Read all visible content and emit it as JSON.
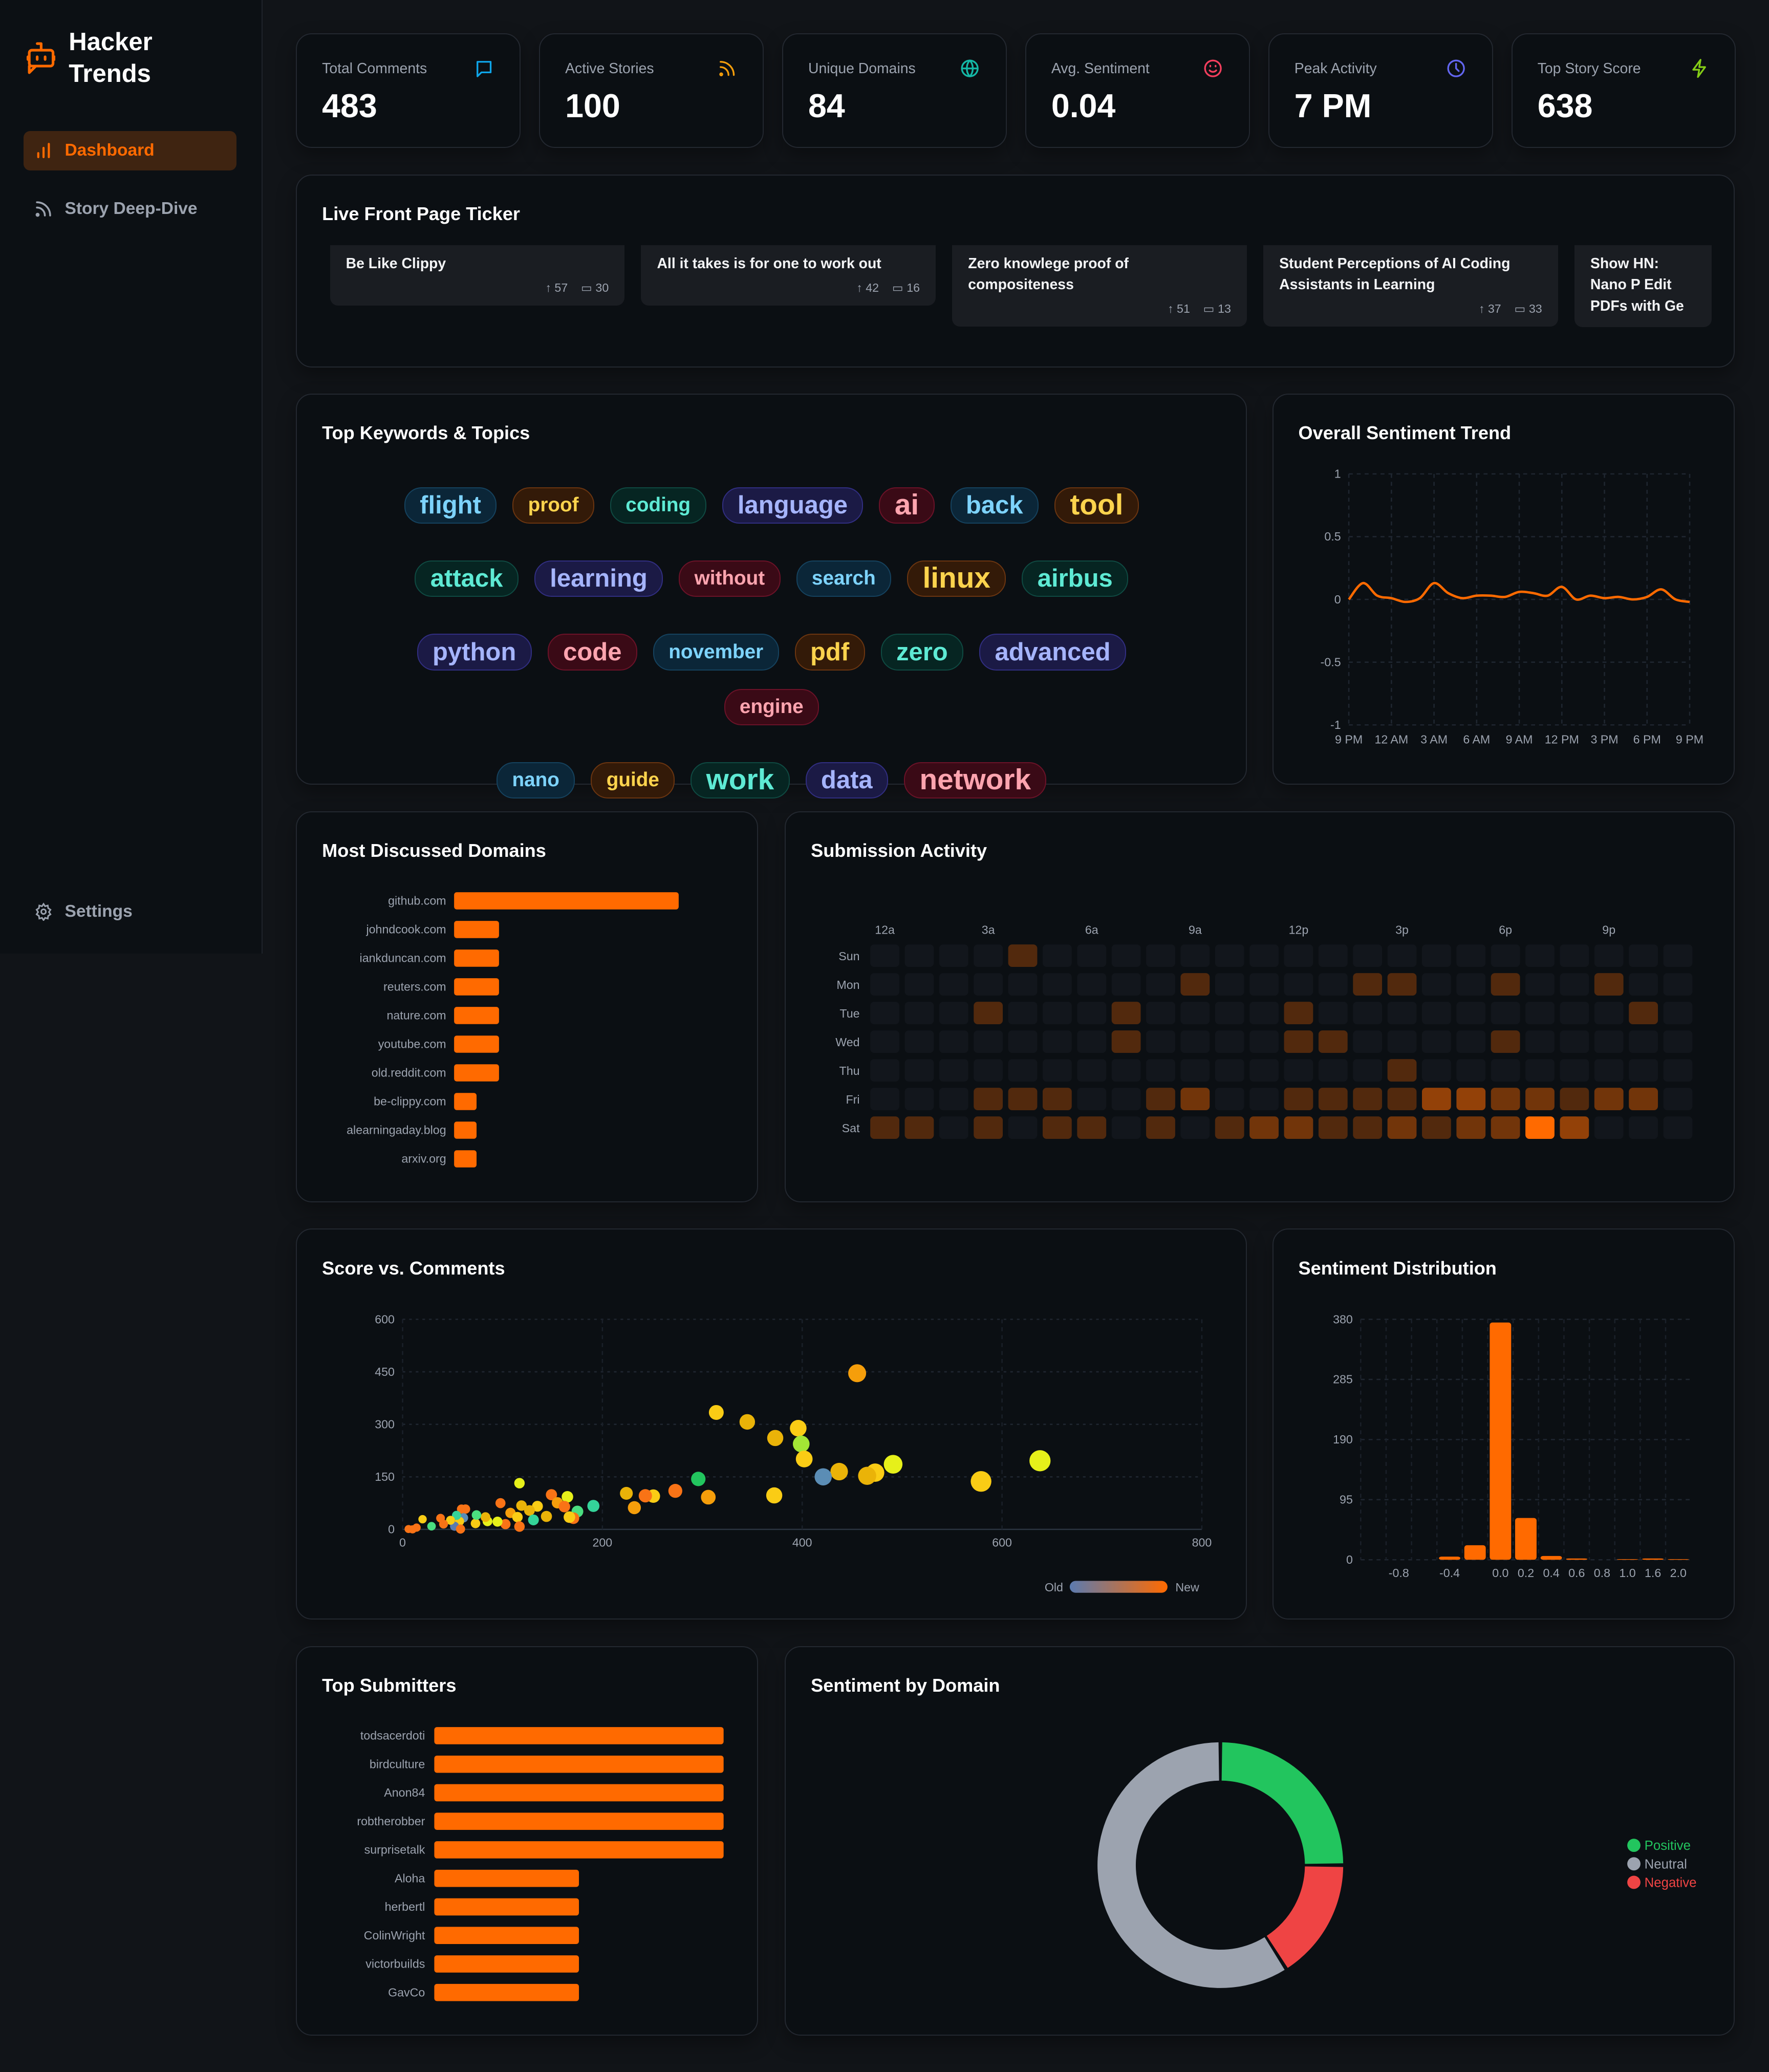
{
  "app": {
    "title": "Hacker Trends",
    "logo_icon": "robot-chat-icon"
  },
  "sidebar": {
    "items": [
      {
        "label": "Dashboard",
        "icon": "bar-chart-icon",
        "active": true
      },
      {
        "label": "Story Deep-Dive",
        "icon": "rss-icon",
        "active": false
      }
    ],
    "settings": {
      "label": "Settings",
      "icon": "gear-icon"
    }
  },
  "stats": [
    {
      "label": "Total Comments",
      "value": "483",
      "icon": "comment-icon",
      "color": "#0ea5e9"
    },
    {
      "label": "Active Stories",
      "value": "100",
      "icon": "rss-icon",
      "color": "#f59e0b"
    },
    {
      "label": "Unique Domains",
      "value": "84",
      "icon": "globe-icon",
      "color": "#14b8a6"
    },
    {
      "label": "Avg. Sentiment",
      "value": "0.04",
      "icon": "smile-icon",
      "color": "#f43f5e"
    },
    {
      "label": "Peak Activity",
      "value": "7 PM",
      "icon": "clock-icon",
      "color": "#6366f1"
    },
    {
      "label": "Top Story Score",
      "value": "638",
      "icon": "zap-icon",
      "color": "#84cc16"
    }
  ],
  "ticker": {
    "title": "Live Front Page Ticker",
    "items": [
      {
        "title": "Be Like Clippy",
        "score": "57",
        "comments": "30"
      },
      {
        "title": "All it takes is for one to work out",
        "score": "42",
        "comments": "16"
      },
      {
        "title": "Zero knowlege proof of compositeness",
        "score": "51",
        "comments": "13"
      },
      {
        "title": "Student Perceptions of AI Coding Assistants in Learning",
        "score": "37",
        "comments": "33"
      },
      {
        "title": "Show HN: Nano P Edit PDFs with Ge",
        "score": "",
        "comments": ""
      }
    ]
  },
  "keywords": {
    "title": "Top Keywords & Topics",
    "items": [
      {
        "word": "flight",
        "weight": 2,
        "color": "blue"
      },
      {
        "word": "proof",
        "weight": 1,
        "color": "amber"
      },
      {
        "word": "coding",
        "weight": 1,
        "color": "teal"
      },
      {
        "word": "language",
        "weight": 2,
        "color": "indigo"
      },
      {
        "word": "ai",
        "weight": 3,
        "color": "rose"
      },
      {
        "word": "back",
        "weight": 2,
        "color": "blue"
      },
      {
        "word": "tool",
        "weight": 3,
        "color": "amber"
      },
      {
        "word": "attack",
        "weight": 2,
        "color": "teal"
      },
      {
        "word": "learning",
        "weight": 2,
        "color": "indigo"
      },
      {
        "word": "without",
        "weight": 1,
        "color": "rose"
      },
      {
        "word": "search",
        "weight": 1,
        "color": "blue"
      },
      {
        "word": "linux",
        "weight": 3,
        "color": "amber"
      },
      {
        "word": "airbus",
        "weight": 2,
        "color": "teal"
      },
      {
        "word": "python",
        "weight": 2,
        "color": "indigo"
      },
      {
        "word": "code",
        "weight": 2,
        "color": "rose"
      },
      {
        "word": "november",
        "weight": 1,
        "color": "blue"
      },
      {
        "word": "pdf",
        "weight": 2,
        "color": "amber"
      },
      {
        "word": "zero",
        "weight": 2,
        "color": "teal"
      },
      {
        "word": "advanced",
        "weight": 2,
        "color": "indigo"
      },
      {
        "word": "engine",
        "weight": 1,
        "color": "rose"
      },
      {
        "word": "nano",
        "weight": 1,
        "color": "blue"
      },
      {
        "word": "guide",
        "weight": 1,
        "color": "amber"
      },
      {
        "word": "work",
        "weight": 3,
        "color": "teal"
      },
      {
        "word": "data",
        "weight": 2,
        "color": "indigo"
      },
      {
        "word": "network",
        "weight": 3,
        "color": "rose"
      }
    ],
    "palette": {
      "blue": {
        "bg": "#0b2638",
        "fg": "#7dd3fc",
        "border": "#15425e"
      },
      "amber": {
        "bg": "#331a08",
        "fg": "#fcd34d",
        "border": "#6b3510"
      },
      "teal": {
        "bg": "#062522",
        "fg": "#5eead4",
        "border": "#0f4a42"
      },
      "indigo": {
        "bg": "#1b1a45",
        "fg": "#a5b4fc",
        "border": "#312e81"
      },
      "rose": {
        "bg": "#3a0a16",
        "fg": "#fda4af",
        "border": "#6b1228"
      }
    }
  },
  "chart_data": [
    {
      "id": "sentiment-trend",
      "type": "line",
      "title": "Overall Sentiment Trend",
      "ylim": [
        -1,
        1
      ],
      "yticks": [
        "1",
        "0.5",
        "0",
        "-0.5",
        "-1"
      ],
      "xticks": [
        "9 PM",
        "12 AM",
        "3 AM",
        "6 AM",
        "9 AM",
        "12 PM",
        "3 PM",
        "6 PM",
        "9 PM"
      ],
      "color": "#ff6a00",
      "grid": true,
      "values": [
        0,
        0.13,
        0.03,
        0.01,
        -0.02,
        0.01,
        0.13,
        0.05,
        0.01,
        0.03,
        0.03,
        0.02,
        0.06,
        0.05,
        0.03,
        0.1,
        0,
        0.03,
        0.01,
        0.02,
        0,
        0.02,
        0.08,
        0,
        -0.02
      ]
    },
    {
      "id": "domains",
      "type": "bar",
      "orientation": "horizontal",
      "title": "Most Discussed Domains",
      "color": "#ff6a00",
      "categories": [
        "github.com",
        "johndcook.com",
        "iankduncan.com",
        "reuters.com",
        "nature.com",
        "youtube.com",
        "old.reddit.com",
        "be-clippy.com",
        "alearningaday.blog",
        "arxiv.org"
      ],
      "values": [
        10,
        2,
        2,
        2,
        2,
        2,
        2,
        1,
        1,
        1
      ]
    },
    {
      "id": "submission-activity",
      "type": "heatmap",
      "title": "Submission Activity",
      "color": "#ff6a00",
      "rows": [
        "Sun",
        "Mon",
        "Tue",
        "Wed",
        "Thu",
        "Fri",
        "Sat"
      ],
      "col_labels": {
        "0": "12a",
        "3": "3a",
        "6": "6a",
        "9": "9a",
        "12": "12p",
        "15": "3p",
        "18": "6p",
        "21": "9p"
      },
      "values": [
        [
          0,
          0,
          0,
          0,
          1,
          0,
          0,
          0,
          0,
          0,
          0,
          0,
          0,
          0,
          0,
          0,
          0,
          0,
          0,
          0,
          0,
          0,
          0,
          0
        ],
        [
          0,
          0,
          0,
          0,
          0,
          0,
          0,
          0,
          0,
          1,
          0,
          0,
          0,
          0,
          1,
          1,
          0,
          0,
          1,
          0,
          0,
          1,
          0,
          0
        ],
        [
          0,
          0,
          0,
          1,
          0,
          0,
          0,
          1,
          0,
          0,
          0,
          0,
          1,
          0,
          0,
          0,
          0,
          0,
          0,
          0,
          0,
          0,
          1,
          0
        ],
        [
          0,
          0,
          0,
          0,
          0,
          0,
          0,
          1,
          0,
          0,
          0,
          0,
          1,
          1,
          0,
          0,
          0,
          0,
          1,
          0,
          0,
          0,
          0,
          0
        ],
        [
          0,
          0,
          0,
          0,
          0,
          0,
          0,
          0,
          0,
          0,
          0,
          0,
          0,
          0,
          0,
          1,
          0,
          0,
          0,
          0,
          0,
          0,
          0,
          0
        ],
        [
          0,
          0,
          0,
          1,
          1,
          1,
          0,
          0,
          1,
          2,
          0,
          0,
          1,
          1,
          1,
          1,
          3,
          3,
          2,
          2,
          1,
          2,
          2,
          0
        ],
        [
          1,
          1,
          0,
          1,
          0,
          1,
          1,
          0,
          1,
          0,
          1,
          2,
          2,
          1,
          1,
          2,
          1,
          2,
          2,
          6,
          3,
          0,
          0,
          0
        ]
      ]
    },
    {
      "id": "score-vs-comments",
      "type": "scatter",
      "title": "Score vs. Comments",
      "xlim": [
        0,
        800
      ],
      "ylim": [
        0,
        600
      ],
      "xticks": [
        "0",
        "200",
        "400",
        "600",
        "800"
      ],
      "yticks": [
        "0",
        "150",
        "300",
        "450",
        "600"
      ],
      "grid": true,
      "legend": {
        "old": "Old",
        "new": "New",
        "from": "#5b7bb0",
        "to": "#ff6a00"
      },
      "points": [
        [
          455,
          446,
          "#f59e0b"
        ],
        [
          314,
          334,
          "#facc15"
        ],
        [
          345,
          307,
          "#eab308"
        ],
        [
          396,
          289,
          "#facc15"
        ],
        [
          373,
          261,
          "#eab308"
        ],
        [
          399,
          244,
          "#a3e635"
        ],
        [
          402,
          201,
          "#facc15"
        ],
        [
          638,
          196,
          "#e6f01a"
        ],
        [
          491,
          186,
          "#e6f01a"
        ],
        [
          473,
          162,
          "#facc15"
        ],
        [
          465,
          153,
          "#eab308"
        ],
        [
          437,
          165,
          "#eab308"
        ],
        [
          421,
          150,
          "#5b8db5"
        ],
        [
          579,
          137,
          "#facc15"
        ],
        [
          296,
          144,
          "#22c55e"
        ],
        [
          117,
          132,
          "#e6f01a"
        ],
        [
          273,
          110,
          "#f97316"
        ],
        [
          306,
          92,
          "#f59e0b"
        ],
        [
          372,
          97,
          "#facc15"
        ],
        [
          251,
          95,
          "#facc15"
        ],
        [
          243,
          96,
          "#f97316"
        ],
        [
          224,
          103,
          "#eab308"
        ],
        [
          232,
          62,
          "#f59e0b"
        ],
        [
          191,
          67,
          "#34d399"
        ],
        [
          165,
          93,
          "#e6f01a"
        ],
        [
          149,
          99,
          "#f97316"
        ],
        [
          155,
          76,
          "#f59e0b"
        ],
        [
          162,
          65,
          "#f97316"
        ],
        [
          175,
          51,
          "#4ade80"
        ],
        [
          171,
          32,
          "#f97316"
        ],
        [
          167,
          35,
          "#facc15"
        ],
        [
          135,
          66,
          "#facc15"
        ],
        [
          119,
          68,
          "#eab308"
        ],
        [
          127,
          54,
          "#eab308"
        ],
        [
          108,
          47,
          "#f59e0b"
        ],
        [
          115,
          35,
          "#facc15"
        ],
        [
          144,
          37,
          "#eab308"
        ],
        [
          131,
          27,
          "#34d399"
        ],
        [
          98,
          75,
          "#f97316"
        ],
        [
          117,
          8,
          "#f97316"
        ],
        [
          103,
          15,
          "#f97316"
        ],
        [
          95,
          22,
          "#e6f01a"
        ],
        [
          85,
          23,
          "#e6f01a"
        ],
        [
          83,
          35,
          "#eab308"
        ],
        [
          73,
          17,
          "#facc15"
        ],
        [
          74,
          41,
          "#4ade80"
        ],
        [
          63,
          58,
          "#f97316"
        ],
        [
          59,
          58,
          "#f97316"
        ],
        [
          61,
          33,
          "#5b8db5"
        ],
        [
          57,
          23,
          "#facc15"
        ],
        [
          54,
          40,
          "#34d399"
        ],
        [
          52,
          9,
          "#5b7bb0"
        ],
        [
          58,
          1,
          "#f97316"
        ],
        [
          48,
          26,
          "#facc15"
        ],
        [
          38,
          32,
          "#f97316"
        ],
        [
          41,
          15,
          "#f97316"
        ],
        [
          29,
          9,
          "#4ade80"
        ],
        [
          20,
          29,
          "#facc15"
        ],
        [
          14,
          5,
          "#f97316"
        ],
        [
          6,
          1,
          "#f97316"
        ],
        [
          10,
          0,
          "#f97316"
        ]
      ]
    },
    {
      "id": "sentiment-distribution",
      "type": "bar",
      "title": "Sentiment Distribution",
      "ylim": [
        0,
        380
      ],
      "color": "#ff6a00",
      "grid": true,
      "yticks": [
        "0",
        "95",
        "190",
        "285",
        "380"
      ],
      "categories": [
        "",
        "-0.8",
        "",
        "-0.4",
        "",
        "0.0",
        "0.2",
        "0.4",
        "0.6",
        "0.8",
        "1.0",
        "1.6",
        "2.0"
      ],
      "values": [
        0,
        0,
        0,
        5,
        23,
        375,
        66,
        6,
        2,
        0,
        1,
        2,
        1
      ]
    },
    {
      "id": "top-submitters",
      "type": "bar",
      "orientation": "horizontal",
      "title": "Top Submitters",
      "color": "#ff6a00",
      "categories": [
        "todsacerdoti",
        "birdculture",
        "Anon84",
        "robtherobber",
        "surprisetalk",
        "Aloha",
        "herbertl",
        "ColinWright",
        "victorbuilds",
        "GavCo"
      ],
      "values": [
        2,
        2,
        2,
        2,
        2,
        1,
        1,
        1,
        1,
        1
      ]
    },
    {
      "id": "sentiment-by-domain",
      "type": "pie",
      "donut": true,
      "title": "Sentiment by Domain",
      "legend": "right",
      "labels": [
        "Positive",
        "Negative",
        "Neutral"
      ],
      "values": [
        25,
        16,
        59
      ],
      "colors": [
        "#22c55e",
        "#ef4444",
        "#9ca3af"
      ]
    }
  ]
}
